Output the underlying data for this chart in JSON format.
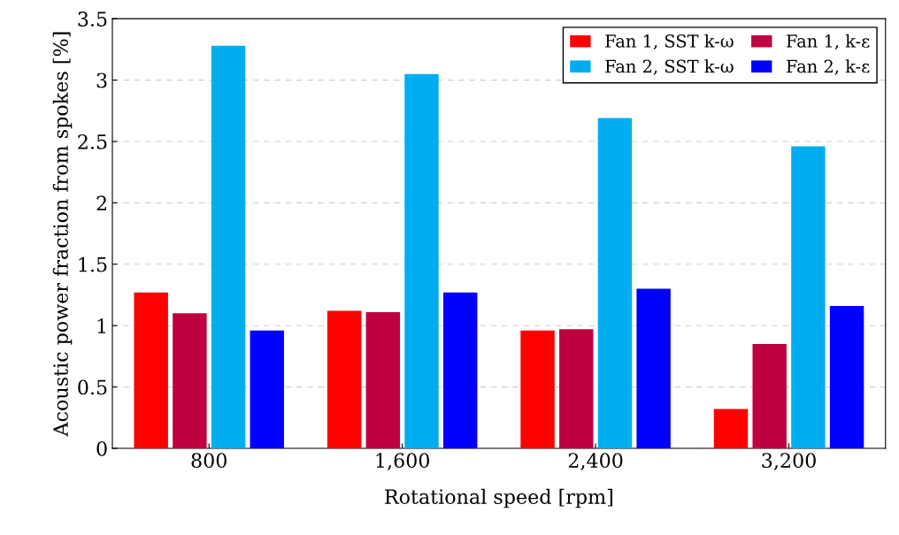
{
  "chart_data": {
    "type": "bar",
    "xlabel": "Rotational speed [rpm]",
    "ylabel": "Acoustic power fraction from spokes [%]",
    "categories": [
      "800",
      "1,600",
      "2,400",
      "3,200"
    ],
    "series": [
      {
        "name": "Fan 1, SST k-ω",
        "color": "#ff0000",
        "values": [
          1.27,
          1.12,
          0.96,
          0.32
        ]
      },
      {
        "name": "Fan 1, k-ε",
        "color": "#bf0040",
        "values": [
          1.1,
          1.11,
          0.97,
          0.85
        ]
      },
      {
        "name": "Fan 2, SST k-ω",
        "color": "#00aeef",
        "values": [
          3.28,
          3.05,
          2.69,
          2.46
        ]
      },
      {
        "name": "Fan 2, k-ε",
        "color": "#0000ff",
        "values": [
          0.96,
          1.27,
          1.3,
          1.16
        ]
      }
    ],
    "ylim": [
      0,
      3.5
    ],
    "yticks": [
      0,
      0.5,
      1,
      1.5,
      2,
      2.5,
      3,
      3.5
    ],
    "grid": "y",
    "legend": "top right"
  }
}
